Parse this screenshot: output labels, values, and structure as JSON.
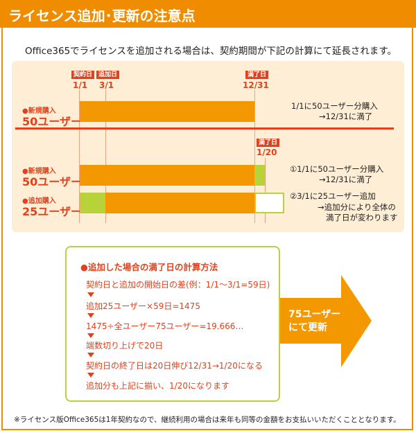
{
  "header": {
    "title": "ライセンス追加･更新の注意点"
  },
  "intro": "Office365でライセンスを追加される場合は、契約期間が下記の計算にて延長されます。",
  "timeline": {
    "tag_contract": "契約日",
    "tag_add": "追加日",
    "tag_end": "満了日",
    "tag_end2": "満了日",
    "date_contract": "1/1",
    "date_add": "3/1",
    "date_end": "12/31",
    "date_end2": "1/20"
  },
  "scenario1": {
    "label_small": "●新規購入",
    "label_big": "50ユーザー",
    "note1": "1/1に50ユーザー分購入",
    "note2": "→12/31に満了"
  },
  "scenario2": {
    "row1_small": "●新規購入",
    "row1_big": "50ユーザー",
    "row2_small": "●追加購入",
    "row2_big": "25ユーザー",
    "note_a1": "①1/1に50ユーザー分購入",
    "note_a2": "→12/31に満了",
    "note_b1": "②3/1に25ユーザー追加",
    "note_b2": "→追加分により全体の",
    "note_b3": "満了日が変わります"
  },
  "calc": {
    "title": "●追加した場合の満了日の計算方法",
    "steps": [
      "契約日と追加の開始日の差(例：1/1～3/1=59日)",
      "追加25ユーザー×59日=1475",
      "1475÷全ユーザー75ユーザー=19.666…",
      "端数切り上げで20日",
      "契約日の終了日は20日伸び12/31→1/20になる",
      "追加分も上記に揃い、1/20になります"
    ]
  },
  "arrow": {
    "line1": "75ユーザー",
    "line2": "にて更新"
  },
  "footnote": "※ライセンス版Office365は1年契約なので、継続利用の場合は来年も同等の金額をお支払いいただくこととなります。",
  "colors": {
    "orange": "#f39800",
    "red": "#e0421d",
    "green": "#b8d33a",
    "panel": "#fdeed5"
  }
}
